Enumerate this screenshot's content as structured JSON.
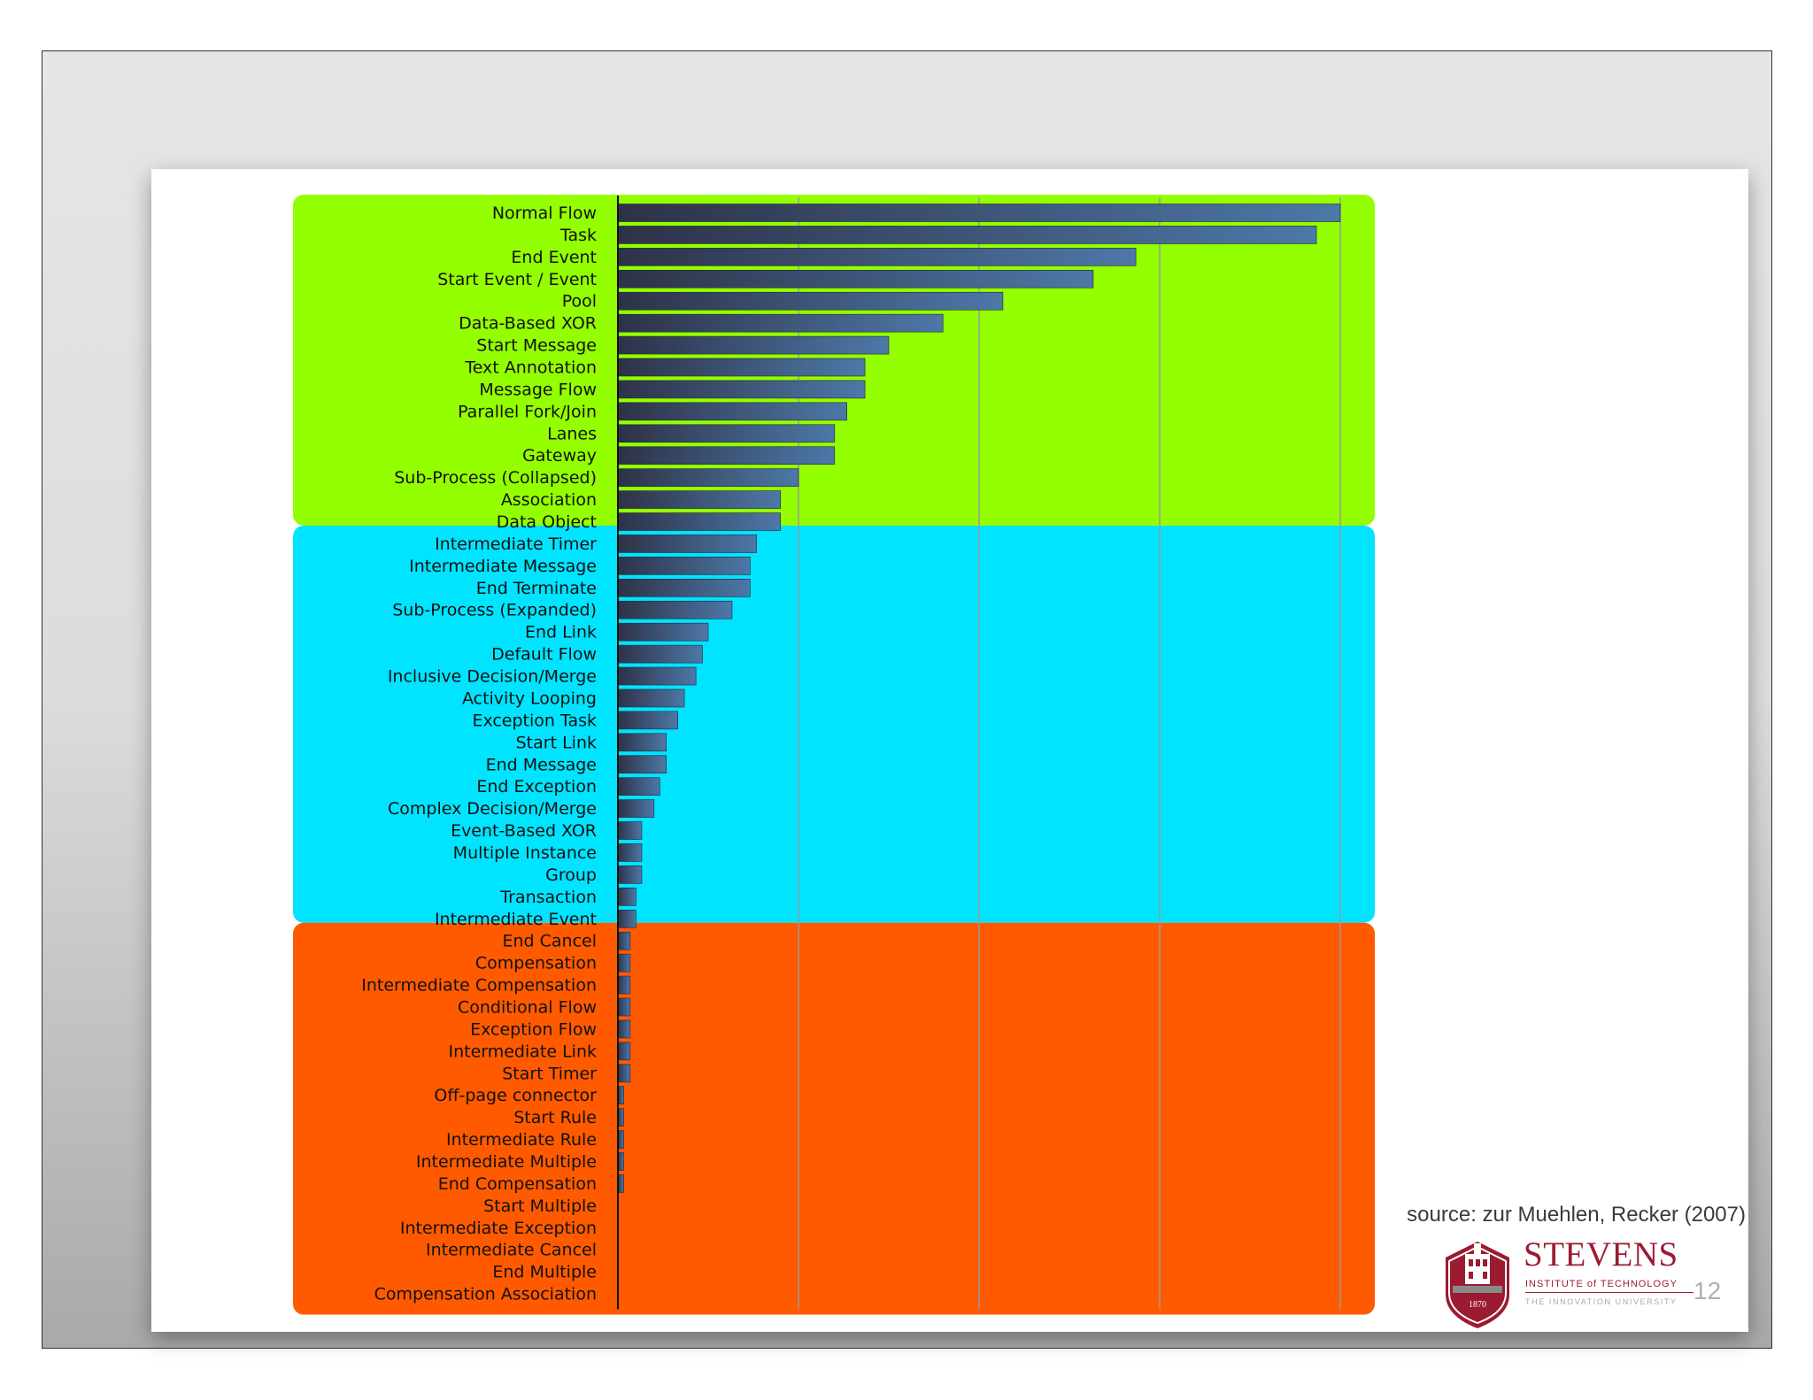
{
  "slide": {
    "source": "source: zur Muehlen, Recker (2007)",
    "page_number": "12",
    "logo": {
      "name": "STEVENS",
      "subtitle": "INSTITUTE of TECHNOLOGY",
      "tagline": "THE INNOVATION UNIVERSITY",
      "year": "1870"
    }
  },
  "colors": {
    "group_1": "#94ff00",
    "group_2": "#00e4ff",
    "group_3": "#ff5a00",
    "bar_dark": "#2e3247",
    "bar_light": "#4d78a8",
    "gridline": "#9a9a9a",
    "logo": "#9b1b30"
  },
  "chart_data": {
    "type": "bar",
    "orientation": "horizontal",
    "title": "",
    "xlabel": "",
    "ylabel": "",
    "xlim": [
      0,
      100
    ],
    "tick_labels_shown": false,
    "grid": "vertical",
    "groups": [
      {
        "color_key": "group_1",
        "first": 0,
        "last": 14
      },
      {
        "color_key": "group_2",
        "first": 15,
        "last": 32
      },
      {
        "color_key": "group_3",
        "first": 33,
        "last": 49
      }
    ],
    "categories": [
      "Normal Flow",
      "Task",
      "End Event",
      "Start Event / Event",
      "Pool",
      "Data-Based XOR",
      "Start Message",
      "Text Annotation",
      "Message Flow",
      "Parallel Fork/Join",
      "Lanes",
      "Gateway",
      "Sub-Process (Collapsed)",
      "Association",
      "Data Object",
      "Intermediate Timer",
      "Intermediate Message",
      "End Terminate",
      "Sub-Process (Expanded)",
      "End Link",
      "Default Flow",
      "Inclusive Decision/Merge",
      "Activity Looping",
      "Exception Task",
      "Start Link",
      "End Message",
      "End Exception",
      "Complex Decision/Merge",
      "Event-Based XOR",
      "Multiple Instance",
      "Group",
      "Transaction",
      "Intermediate Event",
      "End Cancel",
      "Compensation",
      "Intermediate Compensation",
      "Conditional Flow",
      "Exception Flow",
      "Intermediate Link",
      "Start Timer",
      "Off-page connector",
      "Start Rule",
      "Intermediate Rule",
      "Intermediate Multiple",
      "End Compensation",
      "Start Multiple",
      "Intermediate Exception",
      "Intermediate Cancel",
      "End Multiple",
      "Compensation Association"
    ],
    "values": [
      100,
      96.7,
      71.7,
      65.8,
      53.3,
      45.0,
      37.5,
      34.2,
      34.2,
      31.7,
      30.0,
      30.0,
      25.0,
      22.5,
      22.5,
      19.2,
      18.3,
      18.3,
      15.8,
      12.5,
      11.7,
      10.8,
      9.2,
      8.3,
      6.7,
      6.7,
      5.8,
      5.0,
      3.3,
      3.3,
      3.3,
      2.5,
      2.5,
      1.7,
      1.7,
      1.7,
      1.7,
      1.7,
      1.7,
      1.7,
      0.8,
      0.8,
      0.8,
      0.8,
      0.8,
      0,
      0,
      0,
      0,
      0
    ]
  }
}
